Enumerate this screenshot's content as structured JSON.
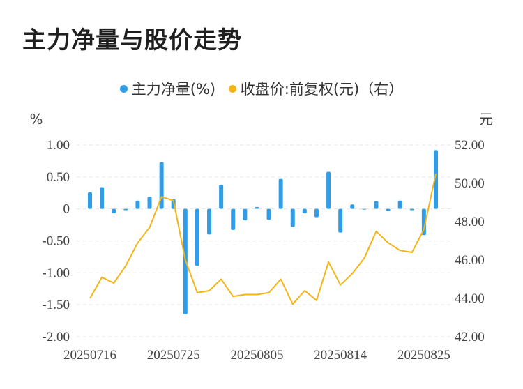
{
  "title": "主力净量与股价走势",
  "legend": {
    "bar_label": "主力净量(%)",
    "line_label": "收盘价:前复权(元)（右）"
  },
  "colors": {
    "bar": "#2f9de8",
    "line": "#f4b416",
    "grid": "#e6e6e6"
  },
  "chart_data": {
    "type": "bar+line",
    "title": "主力净量与股价走势",
    "left_axis": {
      "unit": "%",
      "ylim": [
        -2.0,
        1.0
      ],
      "ticks": [
        "1.00",
        "0.50",
        "0",
        "-0.50",
        "-1.00",
        "-1.50",
        "-2.00"
      ],
      "tick_values": [
        1.0,
        0.5,
        0,
        -0.5,
        -1.0,
        -1.5,
        -2.0
      ]
    },
    "right_axis": {
      "unit": "元",
      "ylim": [
        42.0,
        52.0
      ],
      "ticks": [
        "52.00",
        "50.00",
        "48.00",
        "46.00",
        "44.00",
        "42.00"
      ],
      "tick_values": [
        52,
        50,
        48,
        46,
        44,
        42
      ]
    },
    "x_tick_labels": [
      "20250716",
      "20250725",
      "20250805",
      "20250814",
      "20250825"
    ],
    "x_tick_indices": [
      0,
      7,
      14,
      21,
      28
    ],
    "series": [
      {
        "name": "主力净量(%)",
        "type": "bar",
        "axis": "left",
        "values": [
          0.26,
          0.34,
          -0.07,
          -0.02,
          0.13,
          0.19,
          0.73,
          0.15,
          -1.65,
          -0.89,
          -0.4,
          0.38,
          -0.33,
          -0.18,
          0.03,
          -0.17,
          0.47,
          -0.28,
          -0.07,
          -0.13,
          0.58,
          -0.37,
          0.07,
          0.0,
          0.12,
          -0.03,
          0.13,
          -0.02,
          -0.41,
          0.92
        ]
      },
      {
        "name": "收盘价:前复权(元)（右）",
        "type": "line",
        "axis": "right",
        "values": [
          44.0,
          45.1,
          44.8,
          45.7,
          46.9,
          47.7,
          49.3,
          49.1,
          46.0,
          44.3,
          44.4,
          45.0,
          44.1,
          44.2,
          44.2,
          44.3,
          45.0,
          43.7,
          44.4,
          43.9,
          45.9,
          44.7,
          45.3,
          46.1,
          47.5,
          46.9,
          46.5,
          46.4,
          47.6,
          50.5
        ]
      }
    ]
  }
}
